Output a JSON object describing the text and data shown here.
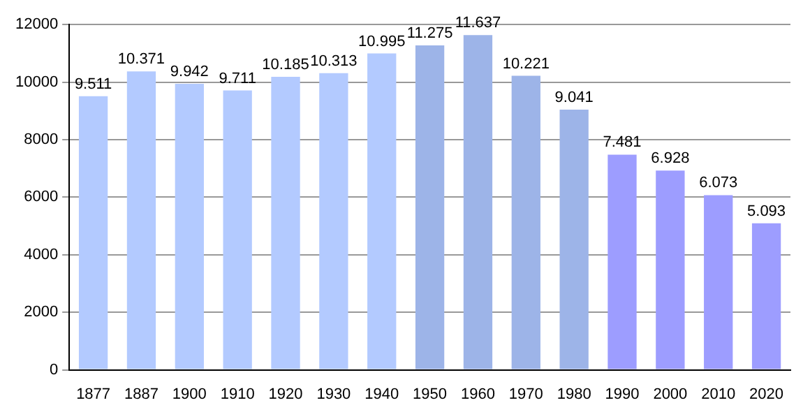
{
  "chart_data": {
    "type": "bar",
    "categories": [
      "1877",
      "1887",
      "1900",
      "1910",
      "1920",
      "1930",
      "1940",
      "1950",
      "1960",
      "1970",
      "1980",
      "1990",
      "2000",
      "2010",
      "2020"
    ],
    "values": [
      9511,
      10371,
      9942,
      9711,
      10185,
      10313,
      10995,
      11275,
      11637,
      10221,
      9041,
      7481,
      6928,
      6073,
      5093
    ],
    "value_labels": [
      "9.511",
      "10.371",
      "9.942",
      "9.711",
      "10.185",
      "10.313",
      "10.995",
      "11.275",
      "11.637",
      "10.221",
      "9.041",
      "7.481",
      "6.928",
      "6.073",
      "5.093"
    ],
    "colors": [
      "#b3caff",
      "#b3caff",
      "#b3caff",
      "#b3caff",
      "#b3caff",
      "#b3caff",
      "#b3caff",
      "#9db4e8",
      "#9db4e8",
      "#9db4e8",
      "#9db4e8",
      "#9d9dff",
      "#9d9dff",
      "#9d9dff",
      "#9d9dff"
    ],
    "ylim": [
      0,
      12000
    ],
    "yticks": [
      0,
      2000,
      4000,
      6000,
      8000,
      10000,
      12000
    ],
    "grid": "y",
    "legend": false
  }
}
